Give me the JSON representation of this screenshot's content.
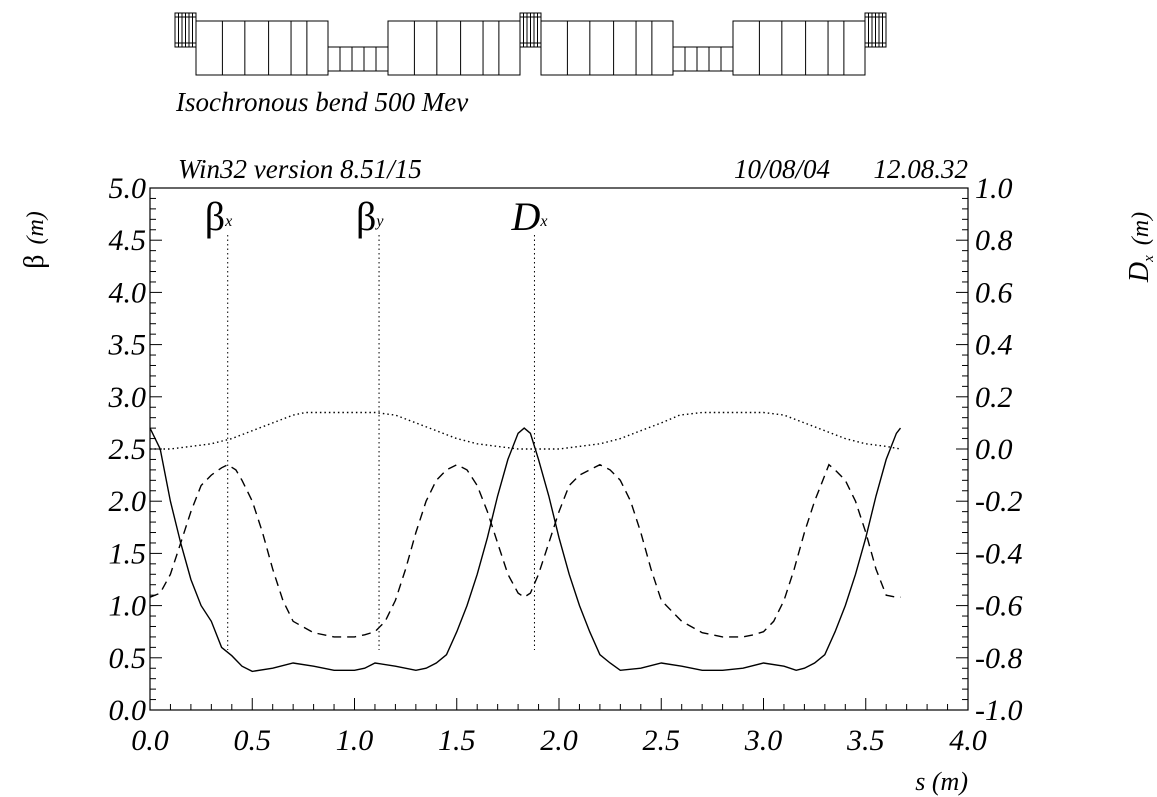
{
  "header": {
    "subtitle": "Isochronous bend 500 Mev",
    "version": "Win32 version 8.51/15",
    "date": "10/08/04",
    "time": "12.08.32"
  },
  "lattice_diagram": {
    "sequence": [
      "sext",
      "dipole",
      "quad",
      "dipole",
      "sext",
      "dipole",
      "quad",
      "dipole",
      "sext"
    ]
  },
  "chart_data": {
    "type": "line",
    "title": "Isochronous bend 500 Mev",
    "xlabel": "s (m)",
    "ylabel_left_symbol": "β",
    "ylabel_left_unit": "(m)",
    "ylabel_right_symbol": "D",
    "ylabel_right_sub": "x",
    "ylabel_right_unit": "(m)",
    "xlim": [
      0.0,
      4.0
    ],
    "ylim_left": [
      0.0,
      5.0
    ],
    "ylim_right": [
      -1.0,
      1.0
    ],
    "x_ticks": [
      "0.0",
      "0.5",
      "1.0",
      "1.5",
      "2.0",
      "2.5",
      "3.0",
      "3.5",
      "4.0"
    ],
    "y_left_ticks": [
      "0.0",
      "0.5",
      "1.0",
      "1.5",
      "2.0",
      "2.5",
      "3.0",
      "3.5",
      "4.0",
      "4.5",
      "5.0"
    ],
    "y_right_ticks": [
      "-1.0",
      "-0.8",
      "-0.6",
      "-0.4",
      "-0.2",
      "0.0",
      "0.2",
      "0.4",
      "0.6",
      "0.8",
      "1.0"
    ],
    "grid": false,
    "series": [
      {
        "name": "βx",
        "symbol": "β",
        "sub": "x",
        "axis": "left",
        "style": "solid",
        "marker_x": 0.38,
        "x": [
          0.0,
          0.05,
          0.1,
          0.15,
          0.2,
          0.25,
          0.3,
          0.35,
          0.4,
          0.45,
          0.5,
          0.6,
          0.7,
          0.8,
          0.9,
          1.0,
          1.05,
          1.1,
          1.2,
          1.3,
          1.35,
          1.4,
          1.45,
          1.5,
          1.55,
          1.6,
          1.65,
          1.7,
          1.75,
          1.8,
          1.83,
          1.86,
          1.9,
          1.95,
          2.0,
          2.05,
          2.1,
          2.15,
          2.2,
          2.25,
          2.3,
          2.4,
          2.5,
          2.6,
          2.7,
          2.8,
          2.9,
          3.0,
          3.1,
          3.16,
          3.2,
          3.25,
          3.3,
          3.35,
          3.4,
          3.45,
          3.5,
          3.55,
          3.6,
          3.65,
          3.67
        ],
        "y": [
          2.7,
          2.5,
          2.0,
          1.6,
          1.25,
          1.0,
          0.85,
          0.6,
          0.52,
          0.42,
          0.37,
          0.4,
          0.45,
          0.42,
          0.38,
          0.38,
          0.4,
          0.45,
          0.42,
          0.38,
          0.4,
          0.45,
          0.53,
          0.75,
          1.0,
          1.3,
          1.65,
          2.05,
          2.4,
          2.65,
          2.7,
          2.65,
          2.4,
          2.05,
          1.65,
          1.3,
          1.0,
          0.75,
          0.53,
          0.45,
          0.38,
          0.4,
          0.45,
          0.42,
          0.38,
          0.38,
          0.4,
          0.45,
          0.42,
          0.38,
          0.4,
          0.45,
          0.53,
          0.75,
          1.0,
          1.3,
          1.65,
          2.05,
          2.4,
          2.65,
          2.7
        ]
      },
      {
        "name": "βy",
        "symbol": "β",
        "sub": "y",
        "axis": "left",
        "style": "dashed",
        "marker_x": 1.12,
        "x": [
          0.0,
          0.05,
          0.1,
          0.15,
          0.2,
          0.25,
          0.3,
          0.35,
          0.38,
          0.42,
          0.45,
          0.5,
          0.55,
          0.6,
          0.65,
          0.7,
          0.8,
          0.9,
          1.0,
          1.05,
          1.1,
          1.15,
          1.2,
          1.25,
          1.3,
          1.35,
          1.4,
          1.45,
          1.5,
          1.55,
          1.6,
          1.65,
          1.7,
          1.75,
          1.8,
          1.83,
          1.86,
          1.9,
          1.95,
          2.0,
          2.05,
          2.1,
          2.15,
          2.2,
          2.25,
          2.3,
          2.35,
          2.4,
          2.45,
          2.5,
          2.6,
          2.7,
          2.8,
          2.9,
          2.95,
          3.0,
          3.05,
          3.1,
          3.15,
          3.2,
          3.25,
          3.28,
          3.32,
          3.35,
          3.4,
          3.45,
          3.5,
          3.55,
          3.6,
          3.65,
          3.67
        ],
        "y": [
          1.08,
          1.12,
          1.3,
          1.6,
          1.9,
          2.15,
          2.25,
          2.32,
          2.35,
          2.3,
          2.2,
          2.0,
          1.7,
          1.35,
          1.05,
          0.85,
          0.74,
          0.7,
          0.7,
          0.72,
          0.75,
          0.85,
          1.05,
          1.35,
          1.7,
          2.0,
          2.2,
          2.3,
          2.35,
          2.3,
          2.15,
          1.9,
          1.6,
          1.3,
          1.12,
          1.08,
          1.12,
          1.3,
          1.6,
          1.9,
          2.15,
          2.25,
          2.3,
          2.35,
          2.3,
          2.2,
          2.0,
          1.7,
          1.35,
          1.05,
          0.85,
          0.74,
          0.7,
          0.7,
          0.72,
          0.75,
          0.85,
          1.05,
          1.35,
          1.7,
          2.0,
          2.15,
          2.35,
          2.3,
          2.2,
          2.0,
          1.7,
          1.35,
          1.1,
          1.08,
          1.08
        ]
      },
      {
        "name": "Dx",
        "symbol": "D",
        "sub": "x",
        "axis": "right",
        "style": "dotted",
        "marker_x": 1.88,
        "x": [
          0.0,
          0.1,
          0.2,
          0.3,
          0.4,
          0.5,
          0.6,
          0.7,
          0.76,
          0.9,
          1.0,
          1.1,
          1.2,
          1.3,
          1.4,
          1.5,
          1.6,
          1.7,
          1.8,
          1.83,
          1.9,
          2.0,
          2.1,
          2.2,
          2.3,
          2.4,
          2.5,
          2.59,
          2.7,
          2.8,
          2.9,
          3.0,
          3.1,
          3.2,
          3.3,
          3.4,
          3.5,
          3.6,
          3.67
        ],
        "y": [
          0.0,
          0.0,
          0.01,
          0.02,
          0.04,
          0.07,
          0.1,
          0.13,
          0.14,
          0.14,
          0.14,
          0.14,
          0.13,
          0.1,
          0.07,
          0.04,
          0.02,
          0.01,
          0.0,
          0.0,
          0.0,
          0.0,
          0.01,
          0.02,
          0.04,
          0.07,
          0.1,
          0.13,
          0.14,
          0.14,
          0.14,
          0.14,
          0.13,
          0.1,
          0.07,
          0.04,
          0.02,
          0.01,
          0.0
        ]
      }
    ]
  }
}
